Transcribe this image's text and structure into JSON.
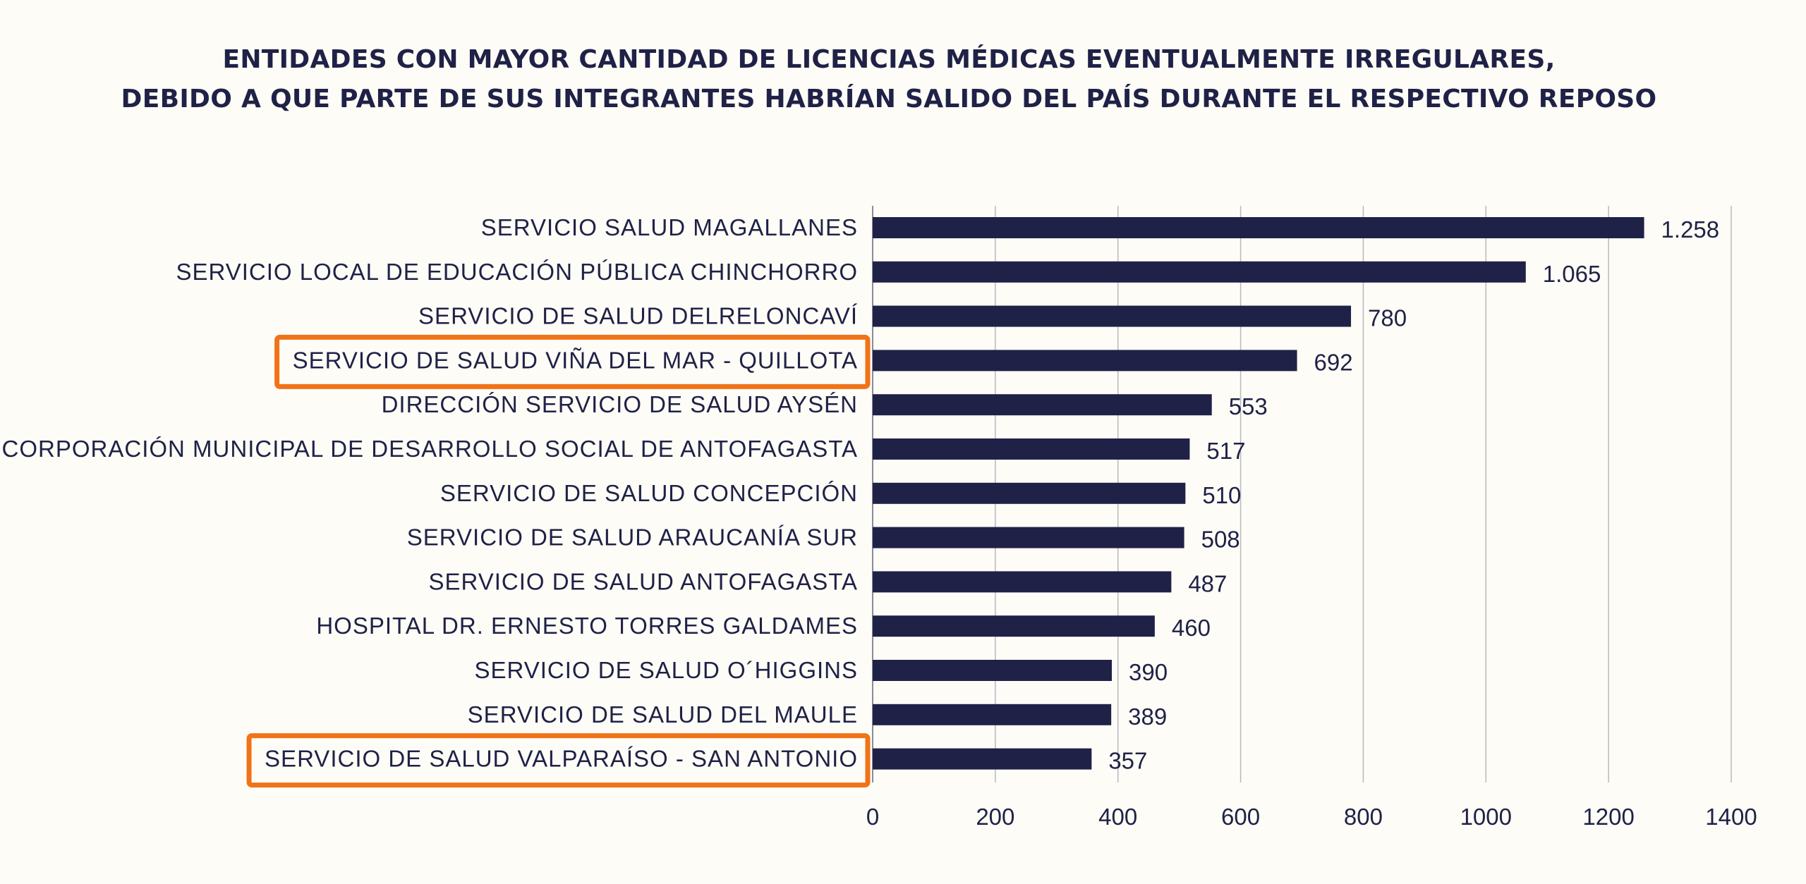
{
  "colors": {
    "background": "#fdfcf6",
    "bar": "#1f2147",
    "text": "#1f2147",
    "grid": "#b8b8c0",
    "highlight": "#f07318"
  },
  "chart_data": {
    "type": "bar",
    "orientation": "horizontal",
    "title_lines": [
      "ENTIDADES CON MAYOR CANTIDAD DE LICENCIAS MÉDICAS EVENTUALMENTE IRREGULARES,",
      "DEBIDO A QUE PARTE DE SUS INTEGRANTES HABRÍAN SALIDO DEL PAÍS DURANTE EL RESPECTIVO REPOSO"
    ],
    "categories": [
      "SERVICIO SALUD MAGALLANES",
      "SERVICIO LOCAL DE EDUCACIÓN PÚBLICA CHINCHORRO",
      "SERVICIO DE SALUD DELRELONCAVÍ",
      "SERVICIO DE SALUD VIÑA DEL MAR - QUILLOTA",
      "DIRECCIÓN SERVICIO DE SALUD AYSÉN",
      "CORPORACIÓN MUNICIPAL DE DESARROLLO SOCIAL DE ANTOFAGASTA",
      "SERVICIO DE SALUD CONCEPCIÓN",
      "SERVICIO DE SALUD ARAUCANÍA SUR",
      "SERVICIO DE SALUD ANTOFAGASTA",
      "HOSPITAL DR. ERNESTO TORRES GALDAMES",
      "SERVICIO DE SALUD O´HIGGINS",
      "SERVICIO DE SALUD DEL  MAULE",
      "SERVICIO DE SALUD VALPARAÍSO - SAN ANTONIO"
    ],
    "values": [
      1258,
      1065,
      780,
      692,
      553,
      517,
      510,
      508,
      487,
      460,
      390,
      389,
      357
    ],
    "value_labels": [
      "1.258",
      "1.065",
      "780",
      "692",
      "553",
      "517",
      "510",
      "508",
      "487",
      "460",
      "390",
      "389",
      "357"
    ],
    "highlighted_categories": [
      3,
      12
    ],
    "xlim": [
      0,
      1400
    ],
    "xticks": [
      0,
      200,
      400,
      600,
      800,
      1000,
      1200,
      1400
    ],
    "xtick_labels": [
      "0",
      "200",
      "400",
      "600",
      "800",
      "1000",
      "1200",
      "1400"
    ],
    "grid": "vertical",
    "legend": "none"
  }
}
